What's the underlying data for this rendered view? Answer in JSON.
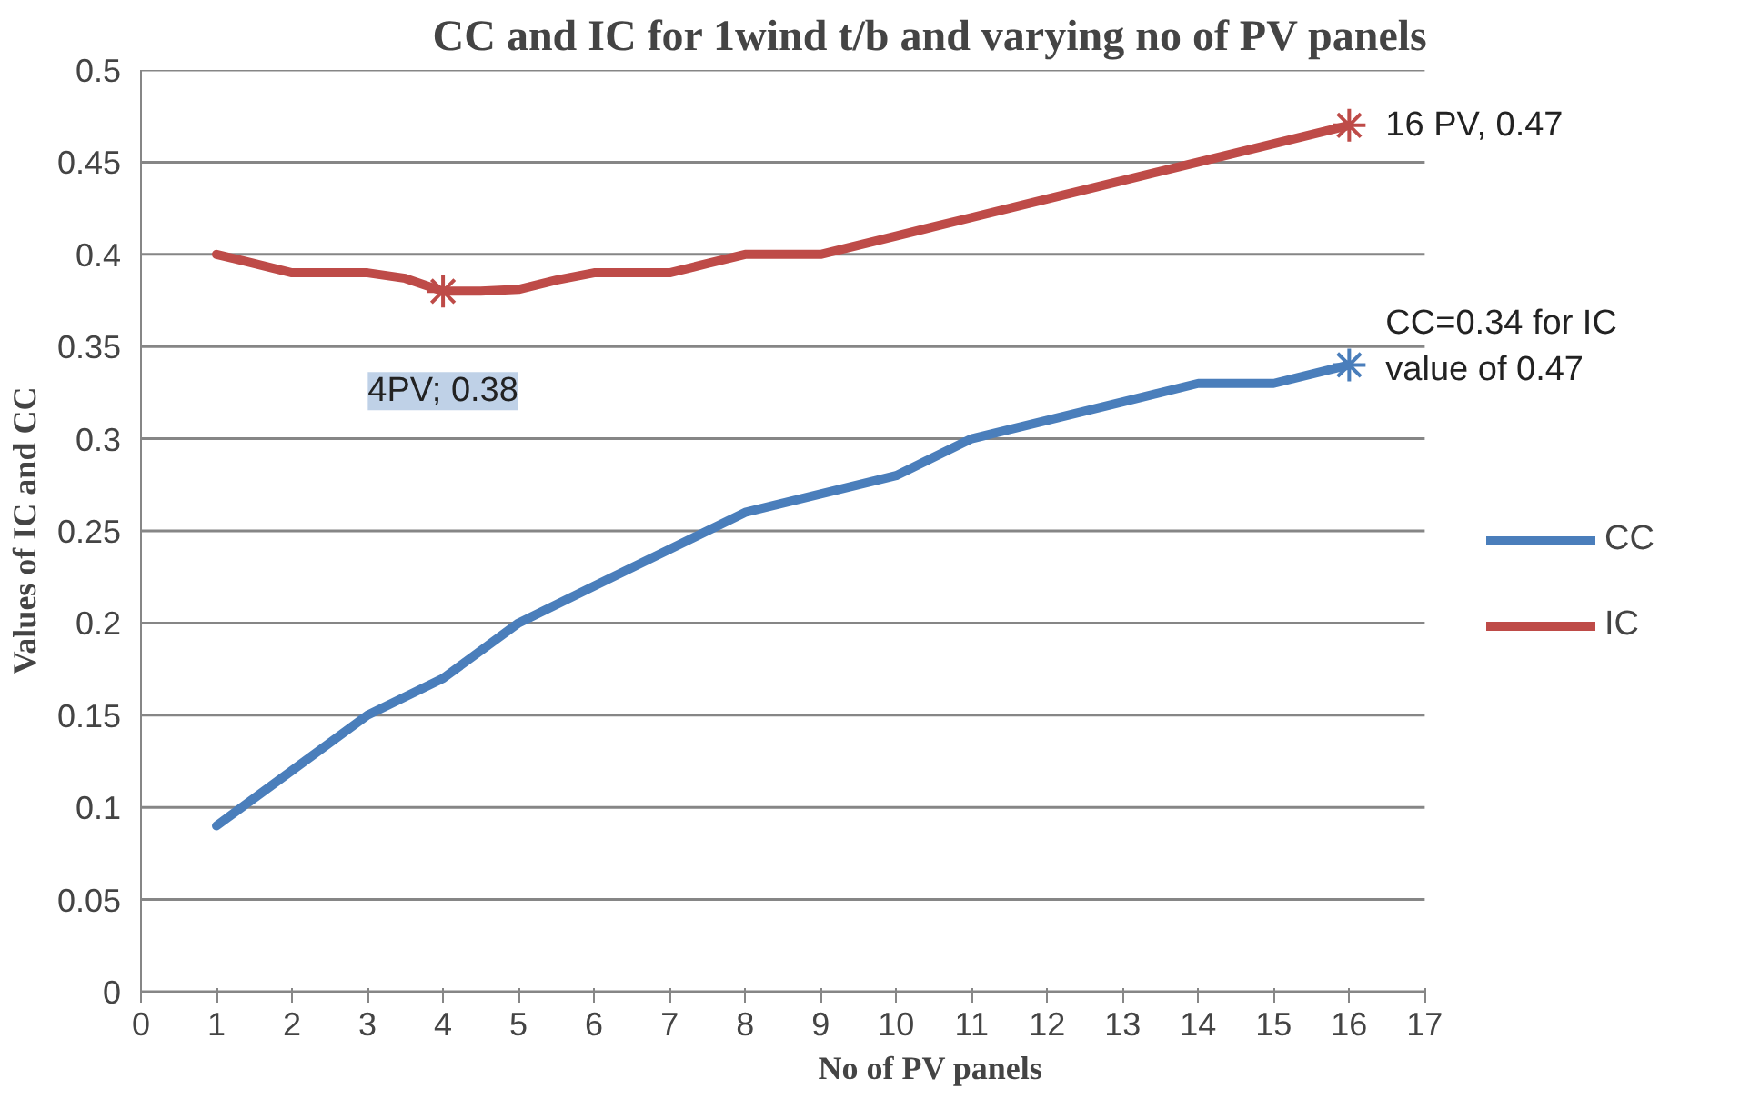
{
  "chart_data": {
    "type": "line",
    "title": "CC and IC for 1wind t/b and varying no of PV panels",
    "xlabel": "No of PV panels",
    "ylabel": "Values of IC and CC",
    "series": [
      {
        "name": "CC",
        "color": "#4a7ebb",
        "x": [
          1,
          2,
          3,
          4,
          5,
          6,
          7,
          8,
          9,
          10,
          11,
          12,
          13,
          14,
          15,
          16
        ],
        "values": [
          0.09,
          0.12,
          0.15,
          0.17,
          0.2,
          0.22,
          0.24,
          0.26,
          0.27,
          0.28,
          0.3,
          0.31,
          0.32,
          0.33,
          0.33,
          0.34
        ]
      },
      {
        "name": "IC",
        "color": "#be4b48",
        "x": [
          1,
          1.5,
          2,
          2.5,
          3,
          3.5,
          4,
          4.5,
          5,
          5.5,
          6,
          6.5,
          7,
          7.5,
          8,
          8.5,
          9,
          10,
          11,
          12,
          13,
          14,
          15,
          16
        ],
        "values": [
          0.4,
          0.395,
          0.39,
          0.39,
          0.39,
          0.387,
          0.38,
          0.38,
          0.381,
          0.386,
          0.39,
          0.39,
          0.39,
          0.395,
          0.4,
          0.4,
          0.4,
          0.41,
          0.42,
          0.43,
          0.44,
          0.45,
          0.46,
          0.47
        ]
      },
      {
        "type": "scatter",
        "marker": "cross",
        "color": "#be4b48",
        "x": [
          4,
          16
        ],
        "values": [
          0.38,
          0.47
        ],
        "value_labels": [
          "4PV; 0.38",
          "16 PV, 0.47"
        ]
      },
      {
        "type": "scatter",
        "marker": "cross",
        "color": "#4a7ebb",
        "x": [
          16
        ],
        "values": [
          0.34
        ],
        "value_labels": [
          "CC=0.34 for IC\nvalue of 0.47"
        ]
      }
    ],
    "xlim": [
      0,
      17
    ],
    "xticks": [
      0,
      1,
      2,
      3,
      4,
      5,
      6,
      7,
      8,
      9,
      10,
      11,
      12,
      13,
      14,
      15,
      16,
      17
    ],
    "ylim": [
      0,
      0.5
    ],
    "yticks": [
      0,
      0.05,
      0.1,
      0.15,
      0.2,
      0.25,
      0.3,
      0.35,
      0.4,
      0.45,
      0.5
    ],
    "grid": "y",
    "legend": "right",
    "marker": "none",
    "line_style": "solid"
  }
}
